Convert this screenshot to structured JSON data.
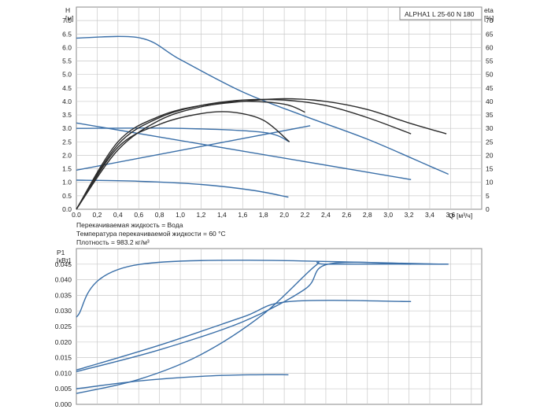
{
  "colors": {
    "blue": "#3a6fa8",
    "dark": "#2b2b2b",
    "grid": "#c9c9c9",
    "frame": "#8a8a8a"
  },
  "chart_data": [
    {
      "type": "line",
      "title": "ALPHA1 L 25-60 N 180",
      "xlabel": "Q [м³/ч]",
      "x_axis_name": "Q",
      "x_axis_unit": "[м³/ч]",
      "ylabel": "H [м]",
      "y_axis_name": "H",
      "y_axis_unit": "[м]",
      "y2label": "eta [%]",
      "y2_axis_name": "eta",
      "y2_axis_unit": "[%]",
      "xlim": [
        0,
        3.9
      ],
      "ylim": [
        0,
        7.5
      ],
      "y2lim": [
        0,
        75
      ],
      "xticks": [
        "0.0",
        "0,2",
        "0,4",
        "0,6",
        "0,8",
        "1,0",
        "1,2",
        "1,4",
        "1,6",
        "1,8",
        "2,0",
        "2,2",
        "2,4",
        "2,6",
        "2,8",
        "3,0",
        "3,2",
        "3,4",
        "3,6"
      ],
      "yticks": [
        "0.0",
        "0.5",
        "1.0",
        "1.5",
        "2.0",
        "2.5",
        "3.0",
        "3.5",
        "4.0",
        "4.5",
        "5.0",
        "5.5",
        "6.0",
        "6.5",
        "7.0"
      ],
      "y2ticks": [
        "0",
        "5",
        "10",
        "15",
        "20",
        "25",
        "30",
        "35",
        "40",
        "45",
        "50",
        "55",
        "60",
        "65",
        "70"
      ],
      "grid": true,
      "notes": [
        "Перекачиваемая жидкость = Вода",
        "Температура перекачиваемой жидкости = 60 °C",
        "Плотность = 983.2 кг/м³"
      ],
      "series": [
        {
          "name": "H max (constant curve)",
          "color": "blue",
          "x": [
            0,
            0.62,
            1.0,
            1.6,
            2.2,
            2.8,
            3.4,
            3.58
          ],
          "y": [
            6.35,
            6.35,
            5.55,
            4.35,
            3.45,
            2.6,
            1.6,
            1.3
          ]
        },
        {
          "name": "H proportional pressure",
          "color": "blue",
          "x": [
            0,
            3.22
          ],
          "y": [
            3.2,
            1.1
          ]
        },
        {
          "name": "H constant pressure",
          "color": "blue",
          "x": [
            0,
            1.0,
            1.8,
            2.05
          ],
          "y": [
            3.0,
            3.0,
            2.85,
            2.5
          ]
        },
        {
          "name": "H rising control line",
          "color": "blue",
          "x": [
            0,
            2.25
          ],
          "y": [
            1.45,
            3.1
          ]
        },
        {
          "name": "H min",
          "color": "blue",
          "x": [
            0,
            0.6,
            1.2,
            1.7,
            2.04
          ],
          "y": [
            1.08,
            1.04,
            0.92,
            0.7,
            0.45
          ]
        },
        {
          "name": "eta curve 1",
          "color": "dark",
          "scale": "y2",
          "x": [
            0,
            0.4,
            0.8,
            1.2,
            1.6,
            2.0,
            2.4,
            2.8,
            3.2,
            3.56
          ],
          "y": [
            0,
            22,
            33,
            38,
            40,
            41,
            40,
            37,
            32,
            28
          ]
        },
        {
          "name": "eta curve 2",
          "color": "dark",
          "scale": "y2",
          "x": [
            0,
            0.4,
            0.8,
            1.2,
            1.6,
            2.0,
            2.4,
            2.8,
            3.22
          ],
          "y": [
            0,
            24,
            34,
            38.5,
            40.5,
            40.5,
            38.5,
            34,
            28
          ]
        },
        {
          "name": "eta curve 3",
          "color": "dark",
          "scale": "y2",
          "x": [
            0,
            0.4,
            0.8,
            1.2,
            1.6,
            2.0,
            2.2
          ],
          "y": [
            0,
            25,
            34.5,
            38.5,
            40,
            39,
            36
          ]
        },
        {
          "name": "eta curve 4",
          "color": "dark",
          "scale": "y2",
          "x": [
            0,
            0.4,
            0.8,
            1.2,
            1.5,
            1.8,
            2.05
          ],
          "y": [
            0,
            23,
            31.5,
            35.5,
            36,
            33,
            25
          ]
        }
      ]
    },
    {
      "type": "line",
      "ylabel": "P1 [кВт]",
      "y_axis_name": "P1",
      "y_axis_unit": "[кВт]",
      "xlim": [
        0,
        3.9
      ],
      "ylim": [
        0,
        0.05
      ],
      "yticks": [
        "0.000",
        "0.005",
        "0.010",
        "0.015",
        "0.020",
        "0.025",
        "0.030",
        "0.035",
        "0.040",
        "0.045"
      ],
      "grid": true,
      "series": [
        {
          "name": "P1 max",
          "color": "blue",
          "x": [
            0,
            0.62,
            3.58
          ],
          "y": [
            0.028,
            0.045,
            0.045
          ]
        },
        {
          "name": "P1 proportional pressure",
          "color": "blue",
          "x": [
            0,
            0.8,
            1.6,
            2.2,
            2.42,
            3.22
          ],
          "y": [
            0.0105,
            0.0175,
            0.0265,
            0.037,
            0.045,
            0.045
          ]
        },
        {
          "name": "P1 constant pressure",
          "color": "blue",
          "x": [
            0,
            0.8,
            1.6,
            2.05,
            3.22
          ],
          "y": [
            0.011,
            0.019,
            0.028,
            0.033,
            0.033
          ]
        },
        {
          "name": "P1 rising control",
          "color": "blue",
          "x": [
            0,
            0.6,
            1.2,
            1.8,
            2.3,
            2.42,
            3.58
          ],
          "y": [
            0.0035,
            0.008,
            0.016,
            0.029,
            0.0445,
            0.045,
            0.045
          ]
        },
        {
          "name": "P1 min",
          "color": "blue",
          "x": [
            0,
            0.6,
            1.2,
            1.7,
            2.04
          ],
          "y": [
            0.005,
            0.0075,
            0.009,
            0.0095,
            0.0095
          ]
        }
      ]
    }
  ]
}
